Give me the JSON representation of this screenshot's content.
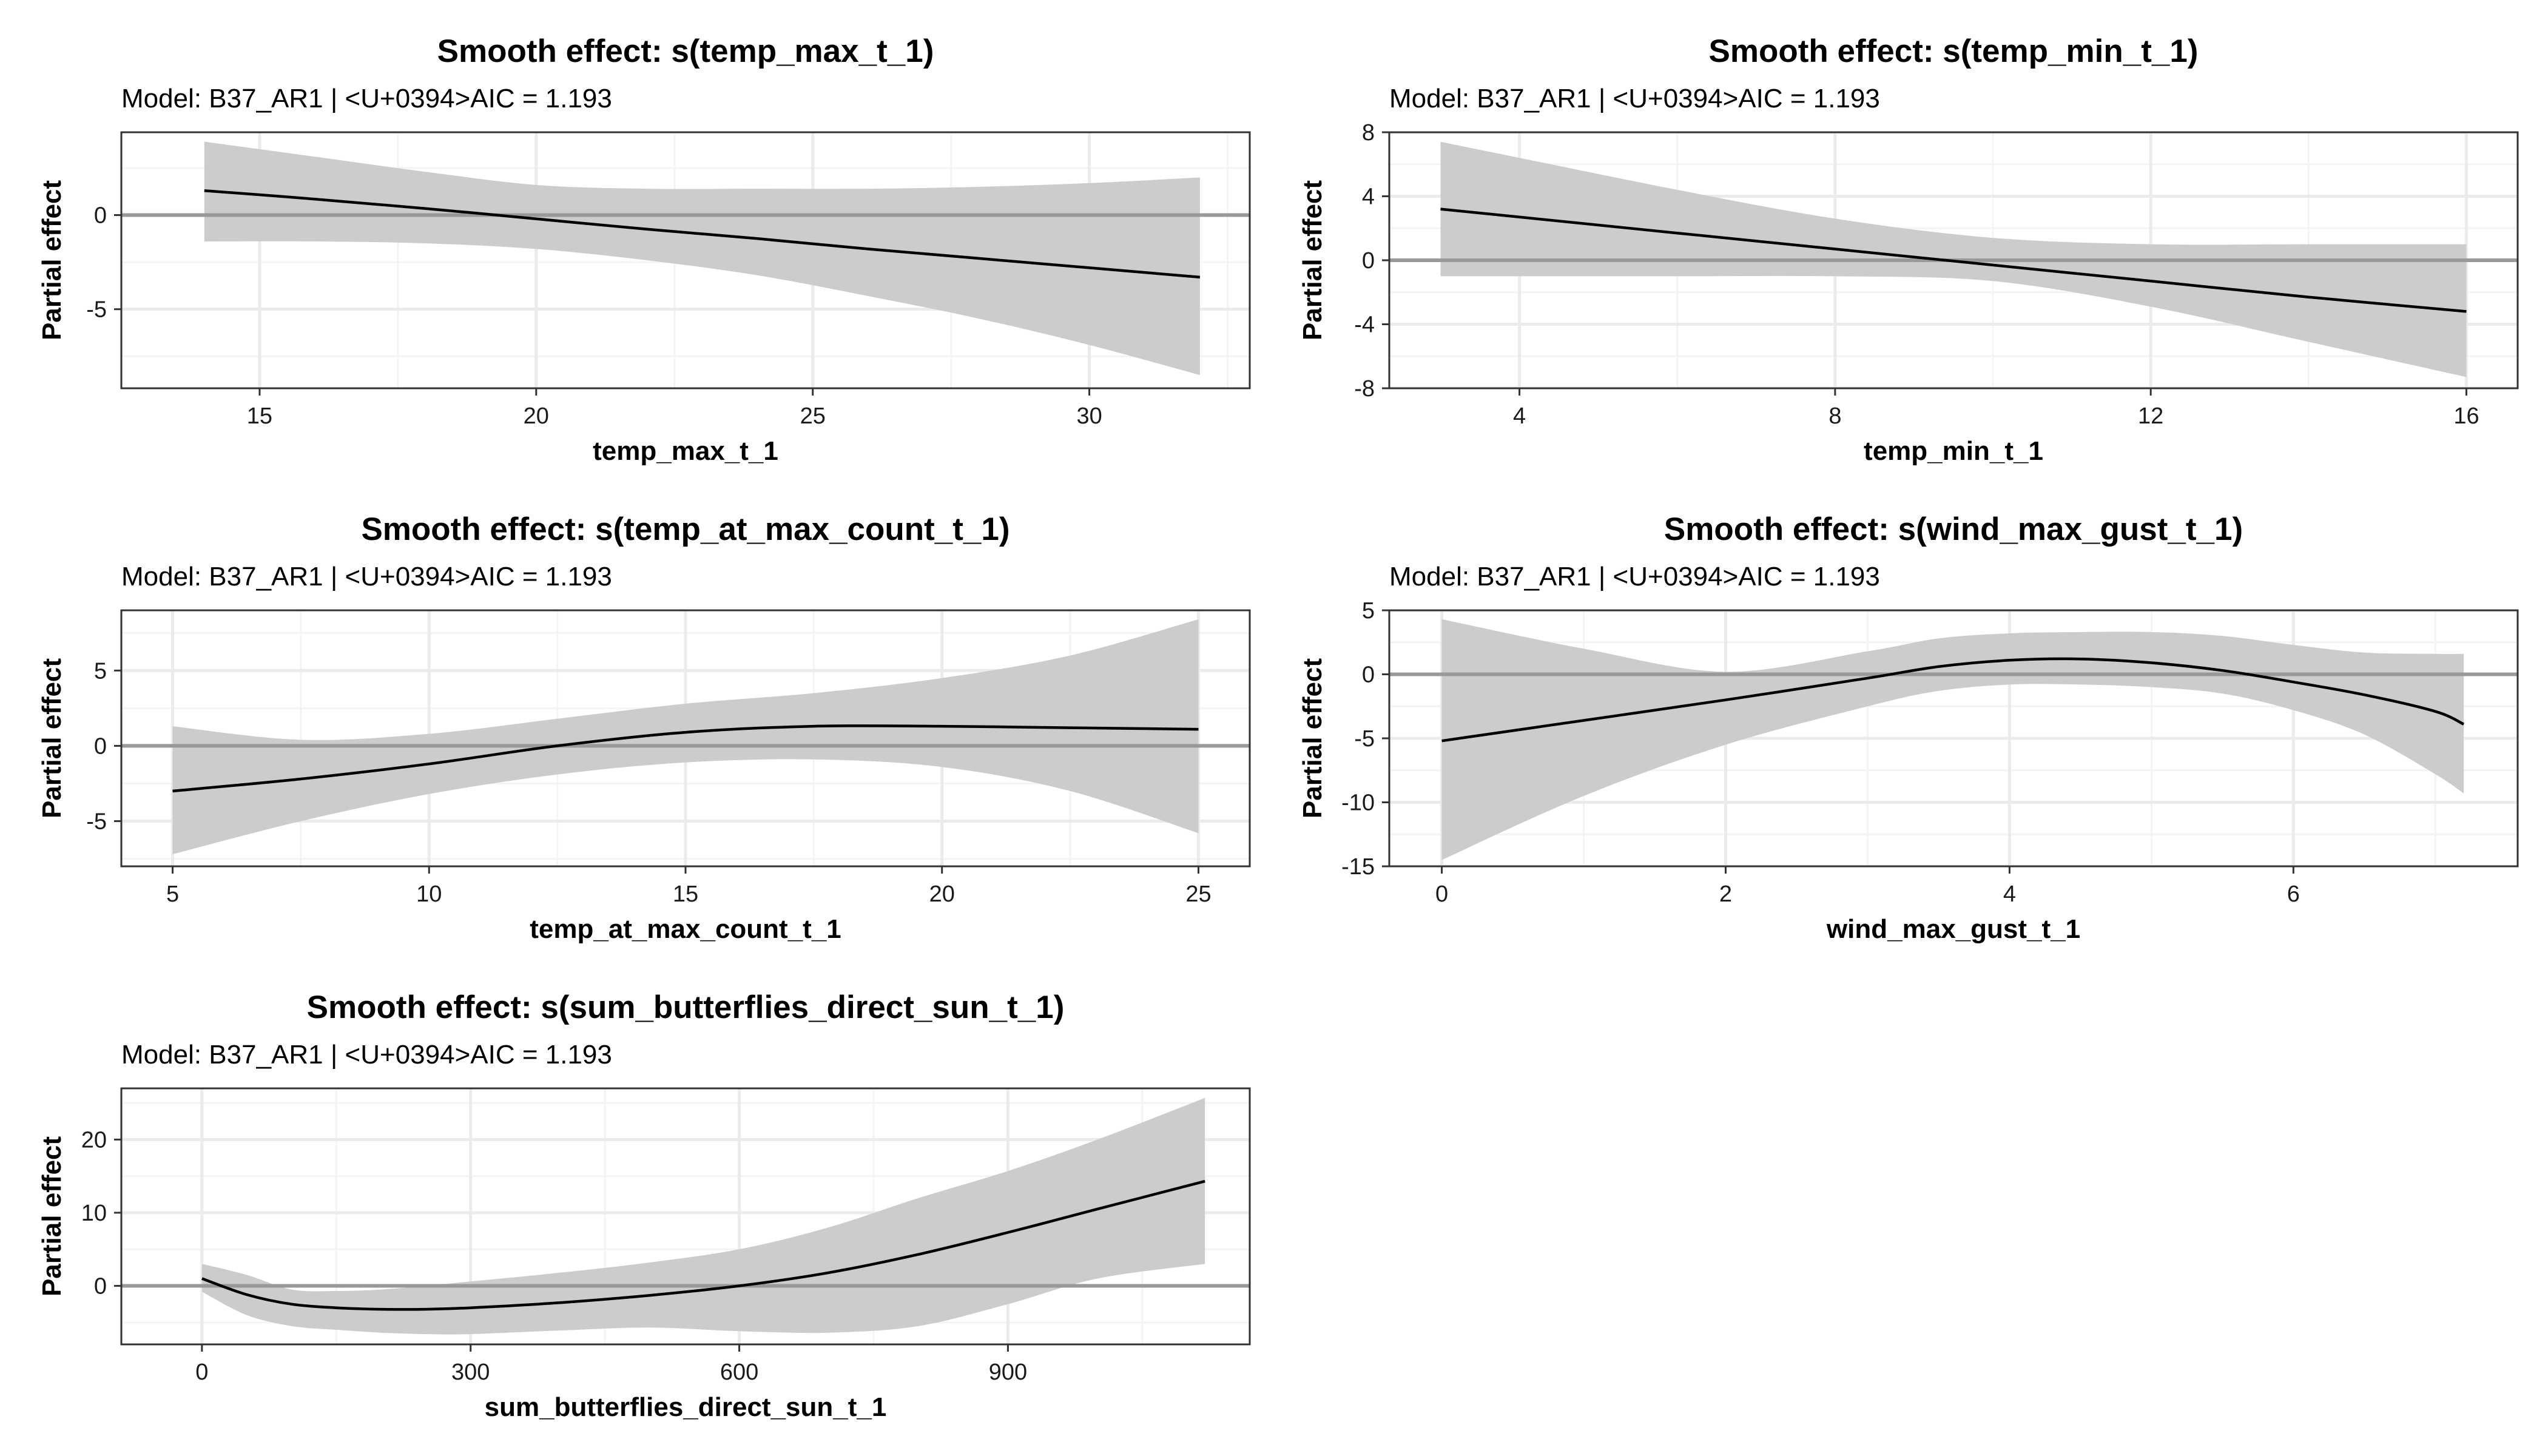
{
  "chart_data": [
    {
      "type": "line",
      "title": "Smooth effect: s(temp_max_t_1)",
      "subtitle": "Model: B37_AR1 | <U+0394>AIC = 1.193",
      "xlabel": "temp_max_t_1",
      "ylabel": "Partial effect",
      "xlim": [
        12.5,
        32.9
      ],
      "ylim": [
        -9.2,
        4.4
      ],
      "xticks": [
        15,
        20,
        25,
        30
      ],
      "xtick_labels": [
        "15",
        "20",
        "25",
        "30"
      ],
      "yticks": [
        -5,
        0
      ],
      "ytick_labels": [
        "-5",
        "0"
      ],
      "reference_line_y": 0,
      "grid": true,
      "series": [
        {
          "x": [
            14,
            16,
            18,
            20,
            22,
            24,
            26,
            28,
            30,
            32
          ],
          "y": [
            1.3,
            0.85,
            0.35,
            -0.2,
            -0.75,
            -1.25,
            -1.8,
            -2.3,
            -2.8,
            -3.3
          ],
          "lower": [
            -1.4,
            -1.4,
            -1.5,
            -1.8,
            -2.4,
            -3.2,
            -4.3,
            -5.5,
            -6.9,
            -8.5
          ],
          "upper": [
            3.9,
            3.1,
            2.3,
            1.6,
            1.4,
            1.4,
            1.4,
            1.5,
            1.7,
            2.0
          ]
        }
      ]
    },
    {
      "type": "line",
      "title": "Smooth effect: s(temp_min_t_1)",
      "subtitle": "Model: B37_AR1 | <U+0394>AIC = 1.193",
      "xlabel": "temp_min_t_1",
      "ylabel": "Partial effect",
      "xlim": [
        2.35,
        16.65
      ],
      "ylim": [
        -8,
        8
      ],
      "xticks": [
        4,
        8,
        12,
        16
      ],
      "xtick_labels": [
        "4",
        "8",
        "12",
        "16"
      ],
      "yticks": [
        -8,
        -4,
        0,
        4,
        8
      ],
      "ytick_labels": [
        "-8",
        "-4",
        "0",
        "4",
        "8"
      ],
      "reference_line_y": 0,
      "grid": true,
      "series": [
        {
          "x": [
            3,
            4,
            6,
            8,
            10,
            12,
            14,
            16
          ],
          "y": [
            3.2,
            2.7,
            1.7,
            0.7,
            -0.3,
            -1.3,
            -2.3,
            -3.2
          ],
          "lower": [
            -1.0,
            -1.0,
            -1.0,
            -1.0,
            -1.3,
            -2.9,
            -5.1,
            -7.3
          ],
          "upper": [
            7.4,
            6.4,
            4.4,
            2.6,
            1.4,
            1.0,
            1.0,
            1.0
          ]
        }
      ]
    },
    {
      "type": "line",
      "title": "Smooth effect: s(temp_at_max_count_t_1)",
      "subtitle": "Model: B37_AR1 | <U+0394>AIC = 1.193",
      "xlabel": "temp_at_max_count_t_1",
      "ylabel": "Partial effect",
      "xlim": [
        4.0,
        26.0
      ],
      "ylim": [
        -8.0,
        9.0
      ],
      "xticks": [
        5,
        10,
        15,
        20,
        25
      ],
      "xtick_labels": [
        "5",
        "10",
        "15",
        "20",
        "25"
      ],
      "yticks": [
        -5,
        0,
        5
      ],
      "ytick_labels": [
        "-5",
        "0",
        "5"
      ],
      "reference_line_y": 0,
      "grid": true,
      "series": [
        {
          "x": [
            5,
            7.5,
            10,
            12.5,
            15,
            17.5,
            20,
            22.5,
            25
          ],
          "y": [
            -3.0,
            -2.2,
            -1.2,
            0.0,
            0.9,
            1.3,
            1.3,
            1.2,
            1.1
          ],
          "lower": [
            -7.2,
            -5.0,
            -3.2,
            -1.9,
            -1.1,
            -0.9,
            -1.4,
            -3.0,
            -5.8
          ],
          "upper": [
            1.3,
            0.4,
            0.8,
            1.8,
            2.8,
            3.5,
            4.5,
            6.0,
            8.4
          ]
        }
      ]
    },
    {
      "type": "line",
      "title": "Smooth effect: s(wind_max_gust_t_1)",
      "subtitle": "Model: B37_AR1 | <U+0394>AIC = 1.193",
      "xlabel": "wind_max_gust_t_1",
      "ylabel": "Partial effect",
      "xlim": [
        -0.37,
        7.58
      ],
      "ylim": [
        -15,
        5
      ],
      "xticks": [
        0,
        2,
        4,
        6
      ],
      "xtick_labels": [
        "0",
        "2",
        "4",
        "6"
      ],
      "yticks": [
        -15,
        -10,
        -5,
        0,
        5
      ],
      "ytick_labels": [
        "-15",
        "-10",
        "-5",
        "0",
        "5"
      ],
      "reference_line_y": 0,
      "grid": true,
      "series": [
        {
          "x": [
            0,
            1,
            2,
            3,
            3.5,
            4,
            4.5,
            5,
            5.5,
            6,
            6.5,
            7,
            7.2
          ],
          "y": [
            -5.2,
            -3.6,
            -2.0,
            -0.3,
            0.6,
            1.1,
            1.2,
            0.9,
            0.3,
            -0.6,
            -1.6,
            -2.9,
            -3.9
          ],
          "lower": [
            -14.5,
            -9.5,
            -5.5,
            -2.5,
            -1.3,
            -0.8,
            -0.8,
            -1.0,
            -1.5,
            -2.8,
            -4.7,
            -7.8,
            -9.3
          ],
          "upper": [
            4.3,
            2.0,
            0.2,
            1.8,
            2.8,
            3.2,
            3.3,
            3.3,
            3.0,
            2.3,
            1.7,
            1.6,
            1.6
          ]
        }
      ]
    },
    {
      "type": "line",
      "title": "Smooth effect: s(sum_butterflies_direct_sun_t_1)",
      "subtitle": "Model: B37_AR1 | <U+0394>AIC = 1.193",
      "xlabel": "sum_butterflies_direct_sun_t_1",
      "ylabel": "Partial effect",
      "xlim": [
        -90,
        1170
      ],
      "ylim": [
        -8,
        27
      ],
      "xticks": [
        0,
        300,
        600,
        900
      ],
      "xtick_labels": [
        "0",
        "300",
        "600",
        "900"
      ],
      "yticks": [
        0,
        10,
        20
      ],
      "ytick_labels": [
        "0",
        "10",
        "20"
      ],
      "reference_line_y": 0,
      "grid": true,
      "series": [
        {
          "x": [
            0,
            50,
            100,
            150,
            200,
            250,
            300,
            400,
            500,
            600,
            700,
            800,
            900,
            1000,
            1120
          ],
          "y": [
            1.0,
            -1.2,
            -2.5,
            -3.0,
            -3.2,
            -3.2,
            -3.0,
            -2.3,
            -1.3,
            0.0,
            1.8,
            4.3,
            7.3,
            10.5,
            14.3
          ],
          "lower": [
            -0.8,
            -4.0,
            -5.5,
            -6.0,
            -6.4,
            -6.6,
            -6.6,
            -6.1,
            -5.7,
            -6.2,
            -6.4,
            -5.5,
            -2.5,
            1.0,
            3.0
          ],
          "upper": [
            3.0,
            1.5,
            -0.5,
            -0.7,
            -0.5,
            0.0,
            0.6,
            1.8,
            3.2,
            5.0,
            8.0,
            12.0,
            15.7,
            20.0,
            25.7
          ]
        }
      ]
    }
  ],
  "colors": {
    "ribbon": "#cccccc",
    "line": "#000000",
    "reference_line": "#999999",
    "grid_major": "#ebebeb",
    "grid_minor": "#f4f4f4",
    "panel_border": "#333333"
  }
}
